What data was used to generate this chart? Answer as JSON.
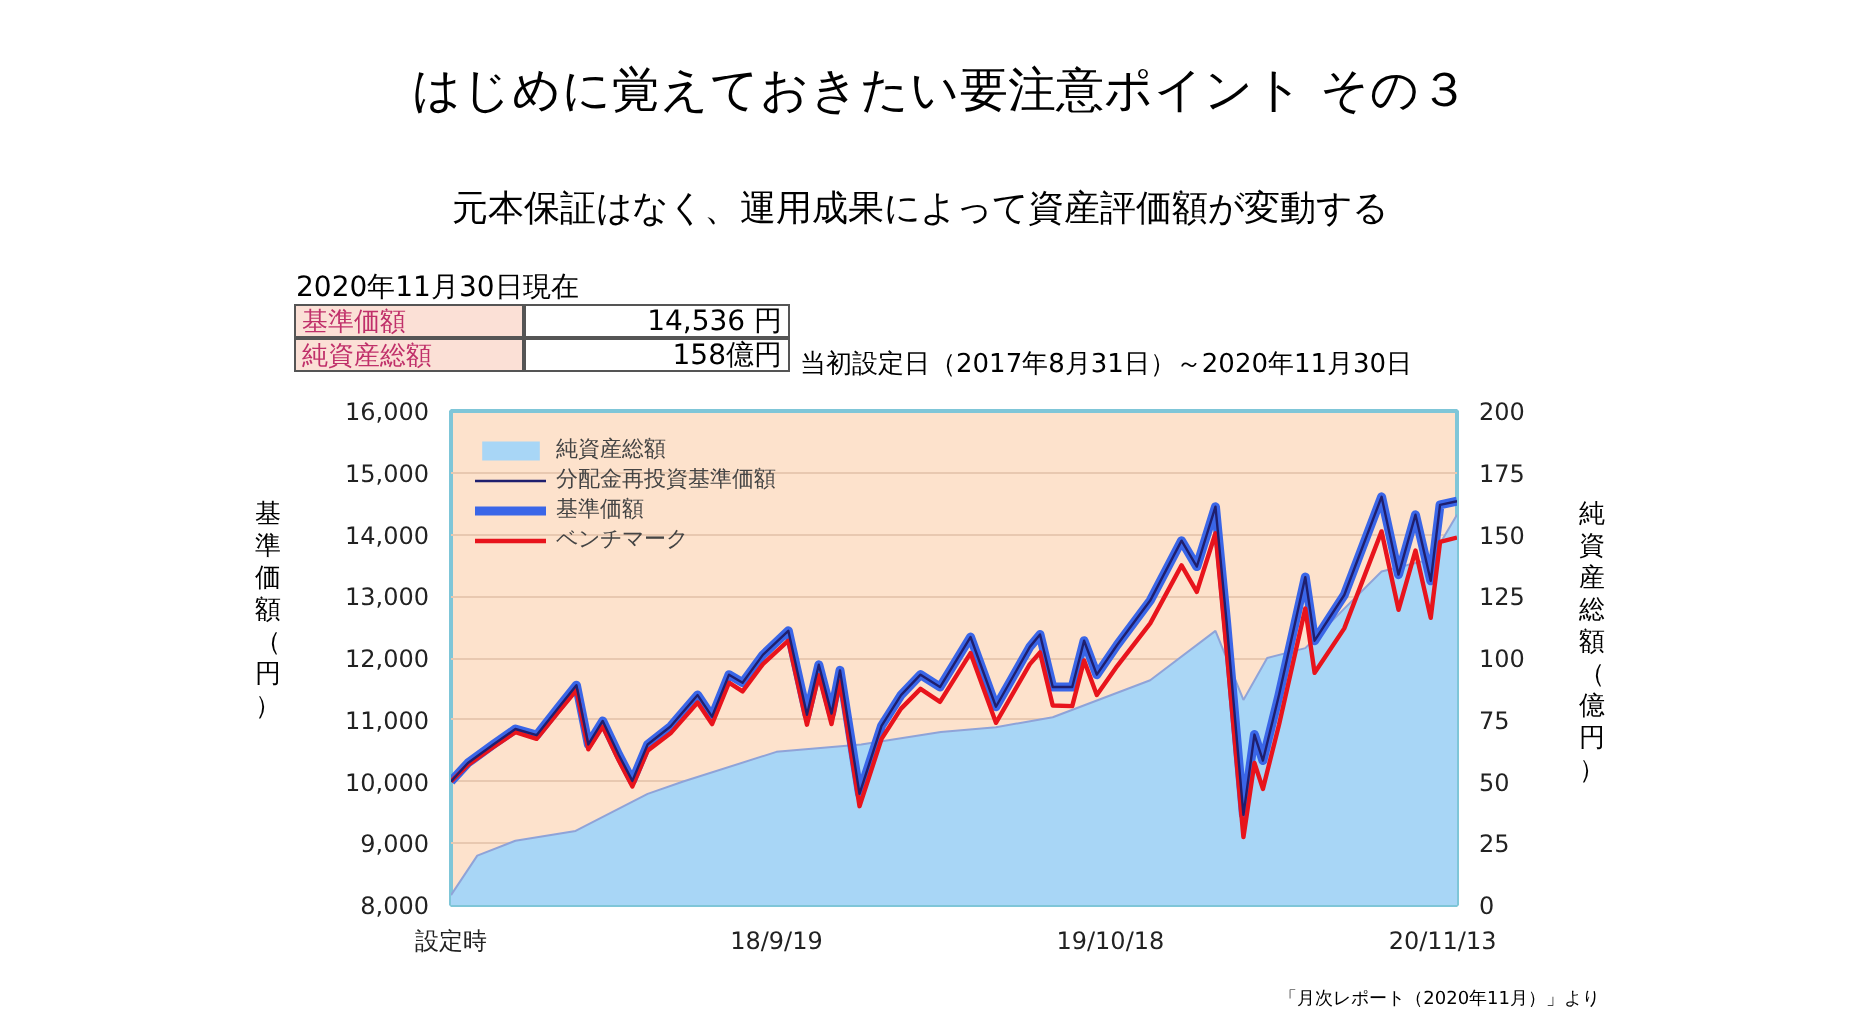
{
  "chart_data": {
    "type": "line",
    "title": "はじめに覚えておきたい要注意ポイント その３",
    "subtitle": "元本保証はなく、運用成果によって資産評価額が変動する",
    "ylabel": "基準価額（円）",
    "y2label": "純資産総額（億円）",
    "annotations": [
      "2020年11月30日現在",
      "基準価額",
      "14,536 円",
      "純資産総額",
      "158億円",
      "当初設定日（2017年8月31日）～2020年11月30日",
      "「月次レポート（2020年11月）」より"
    ],
    "x": [
      "2017-08-31",
      "2017-09-20",
      "2017-10-20",
      "2017-11-15",
      "2017-12-10",
      "2018-01-05",
      "2018-01-26",
      "2018-02-09",
      "2018-02-26",
      "2018-03-17",
      "2018-04-02",
      "2018-04-20",
      "2018-05-17",
      "2018-06-18",
      "2018-07-05",
      "2018-07-25",
      "2018-08-10",
      "2018-09-03",
      "2018-10-03",
      "2018-10-25",
      "2018-11-08",
      "2018-11-23",
      "2018-12-03",
      "2018-12-26",
      "2019-01-21",
      "2019-02-13",
      "2019-03-08",
      "2019-03-31",
      "2019-05-06",
      "2019-06-05",
      "2019-07-15",
      "2019-07-27",
      "2019-08-11",
      "2019-09-03",
      "2019-09-17",
      "2019-10-02",
      "2019-10-26",
      "2019-12-04",
      "2020-01-10",
      "2020-01-28",
      "2020-02-19",
      "2020-03-03",
      "2020-03-23",
      "2020-04-05",
      "2020-04-15",
      "2020-05-04",
      "2020-06-04",
      "2020-06-15",
      "2020-07-20",
      "2020-09-02",
      "2020-09-22",
      "2020-10-12",
      "2020-10-30",
      "2020-11-10",
      "2020-11-30"
    ],
    "series": [
      {
        "name": "純資産総額",
        "type": "area",
        "axis": "y2",
        "color": "#a8d6f6",
        "x": [
          "2017-08-31",
          "2017-10-01",
          "2017-11-15",
          "2018-01-25",
          "2018-04-20",
          "2018-06-01",
          "2018-09-19",
          "2018-12-28",
          "2019-04-01",
          "2019-06-05",
          "2019-08-11",
          "2019-12-04",
          "2020-02-19",
          "2020-03-23",
          "2020-04-20",
          "2020-06-04",
          "2020-07-20",
          "2020-09-02",
          "2020-10-30",
          "2020-11-30"
        ],
        "values": [
          4,
          20,
          26,
          30,
          45,
          50,
          62,
          65,
          70,
          72,
          76,
          91,
          111,
          83,
          100,
          104,
          120,
          135,
          140,
          158
        ]
      },
      {
        "name": "分配金再投資基準価額",
        "color": "#1f1f6e",
        "values": [
          10000,
          10300,
          10600,
          10850,
          10750,
          11200,
          11560,
          10600,
          10980,
          10430,
          10010,
          10600,
          10890,
          11400,
          11050,
          11730,
          11600,
          12050,
          12440,
          11080,
          11890,
          11100,
          11800,
          9800,
          10900,
          11400,
          11730,
          11530,
          12340,
          11210,
          12180,
          12380,
          11530,
          11530,
          12280,
          11730,
          12210,
          12930,
          13900,
          13480,
          14450,
          12600,
          9460,
          10760,
          10340,
          11400,
          13310,
          12280,
          13020,
          14610,
          13350,
          14320,
          13250,
          14480,
          14540
        ]
      },
      {
        "name": "基準価額",
        "color": "#3a66e8",
        "values": [
          10000,
          10300,
          10600,
          10850,
          10750,
          11200,
          11560,
          10600,
          10980,
          10430,
          10010,
          10600,
          10890,
          11400,
          11050,
          11730,
          11600,
          12050,
          12440,
          11080,
          11890,
          11100,
          11800,
          9800,
          10900,
          11400,
          11730,
          11530,
          12340,
          11210,
          12180,
          12380,
          11530,
          11530,
          12280,
          11730,
          12210,
          12930,
          13900,
          13480,
          14450,
          12600,
          9460,
          10760,
          10340,
          11400,
          13310,
          12280,
          13020,
          14610,
          13350,
          14320,
          13250,
          14480,
          14540
        ]
      },
      {
        "name": "ベンチマーク",
        "color": "#e8141c",
        "values": [
          10000,
          10270,
          10560,
          10800,
          10690,
          11130,
          11480,
          10520,
          10890,
          10340,
          9920,
          10500,
          10780,
          11280,
          10930,
          11600,
          11460,
          11900,
          12280,
          10920,
          11720,
          10930,
          11620,
          9600,
          10690,
          11180,
          11500,
          11290,
          12080,
          10950,
          11900,
          12090,
          11230,
          11220,
          11960,
          11400,
          11870,
          12560,
          13500,
          13070,
          14020,
          12150,
          9100,
          10300,
          9880,
          10920,
          12800,
          11760,
          12480,
          14050,
          12780,
          13740,
          12650,
          13880,
          13950
        ]
      }
    ],
    "xlim": [
      "2017-08-31",
      "2020-11-30"
    ],
    "xticks": [
      {
        "value": "2017-08-31",
        "label": "設定時"
      },
      {
        "value": "2018-09-19",
        "label": "18/9/19"
      },
      {
        "value": "2019-10-18",
        "label": "19/10/18"
      },
      {
        "value": "2020-11-13",
        "label": "20/11/13"
      }
    ],
    "ylim": [
      8000,
      16000
    ],
    "yticks": [
      {
        "value": 8000,
        "label": "8,000"
      },
      {
        "value": 9000,
        "label": "9,000"
      },
      {
        "value": 10000,
        "label": "10,000"
      },
      {
        "value": 11000,
        "label": "11,000"
      },
      {
        "value": 12000,
        "label": "12,000"
      },
      {
        "value": 13000,
        "label": "13,000"
      },
      {
        "value": 14000,
        "label": "14,000"
      },
      {
        "value": 15000,
        "label": "15,000"
      },
      {
        "value": 16000,
        "label": "16,000"
      }
    ],
    "y2lim": [
      0,
      200
    ],
    "y2ticks": [
      0,
      25,
      50,
      75,
      100,
      125,
      150,
      175,
      200
    ],
    "grid": "y",
    "legend": "top left"
  }
}
